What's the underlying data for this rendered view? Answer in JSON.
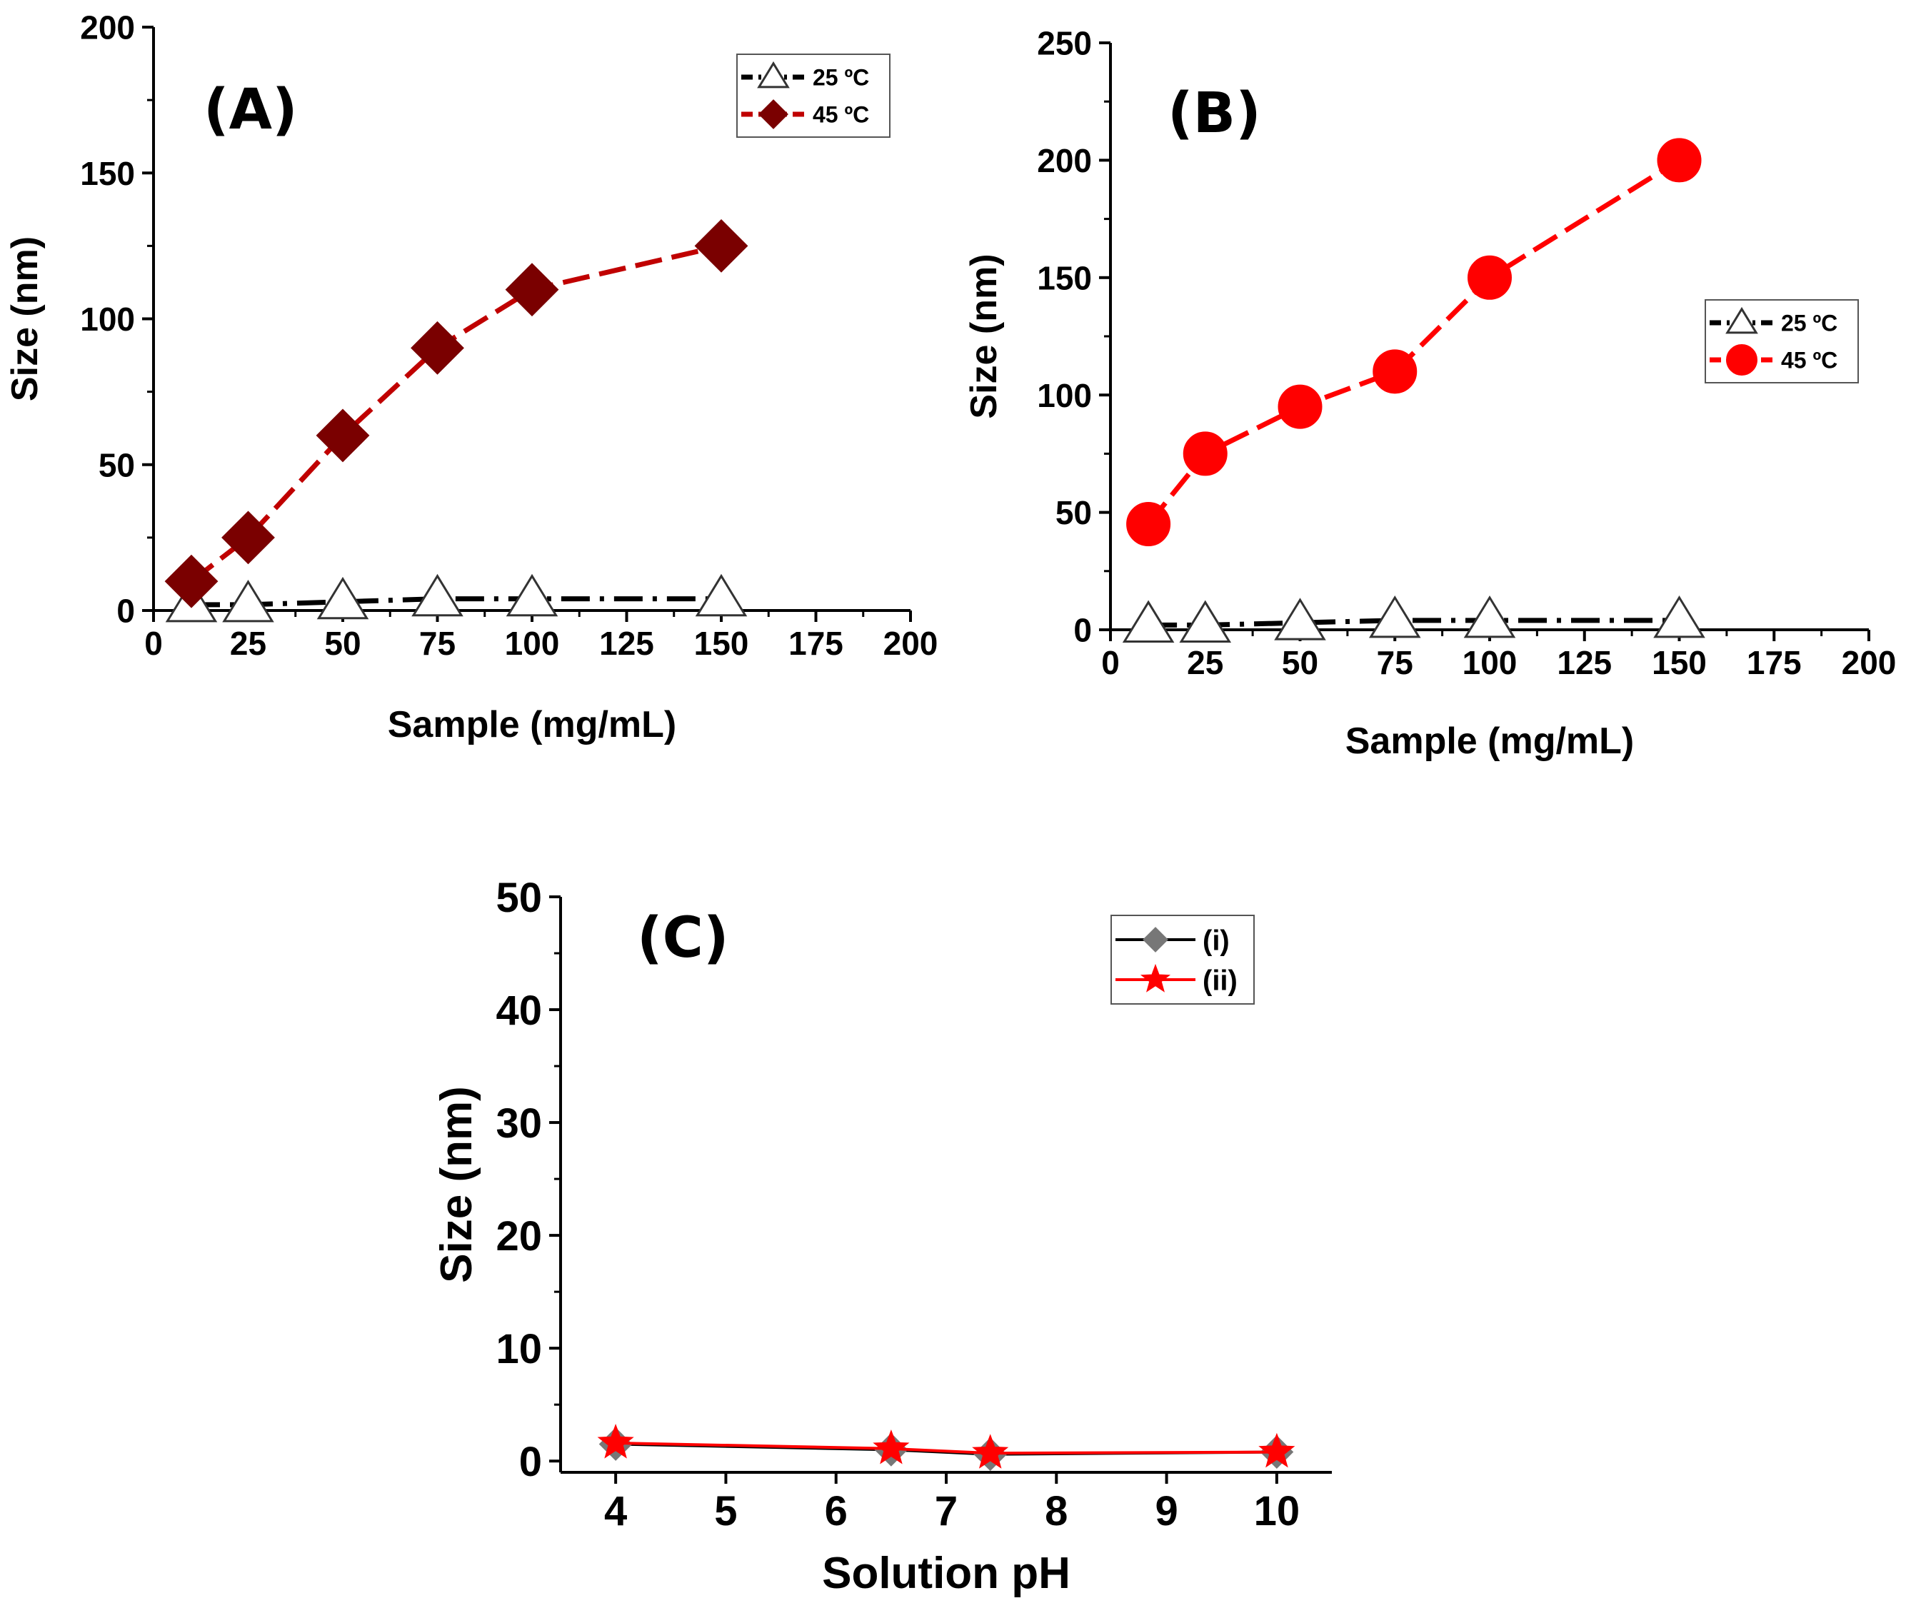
{
  "chart_data": [
    {
      "type": "line",
      "panel_label": "(A)",
      "xlabel": "Sample (mg/mL)",
      "ylabel": "Size (nm)",
      "xlim": [
        0,
        200
      ],
      "ylim": [
        0,
        200
      ],
      "xticks": [
        0,
        25,
        50,
        75,
        100,
        125,
        150,
        175,
        200
      ],
      "yticks": [
        0,
        50,
        100,
        150,
        200
      ],
      "legend_position": "top-right",
      "series": [
        {
          "name": "25 ºC",
          "color": "#000000",
          "marker": "triangle-open",
          "dash": "dash-dot",
          "x": [
            10,
            25,
            50,
            75,
            100,
            150
          ],
          "y": [
            2,
            2,
            3,
            4,
            4,
            4
          ]
        },
        {
          "name": "45 ºC",
          "color": "#7a0000",
          "line_color": "#c00000",
          "marker": "diamond",
          "dash": "dash",
          "x": [
            10,
            25,
            50,
            75,
            100,
            150
          ],
          "y": [
            10,
            25,
            60,
            90,
            110,
            125
          ]
        }
      ]
    },
    {
      "type": "line",
      "panel_label": "(B)",
      "xlabel": "Sample (mg/mL)",
      "ylabel": "Size (nm)",
      "xlim": [
        0,
        200
      ],
      "ylim": [
        0,
        250
      ],
      "xticks": [
        0,
        25,
        50,
        75,
        100,
        125,
        150,
        175,
        200
      ],
      "yticks": [
        0,
        50,
        100,
        150,
        200,
        250
      ],
      "legend_position": "right",
      "series": [
        {
          "name": "25 ºC",
          "color": "#000000",
          "marker": "triangle-open",
          "dash": "dash-dot",
          "x": [
            10,
            25,
            50,
            75,
            100,
            150
          ],
          "y": [
            2,
            2,
            3,
            4,
            4,
            4
          ]
        },
        {
          "name": "45 ºC",
          "color": "#ff0000",
          "line_color": "#ff0000",
          "marker": "circle",
          "dash": "dash",
          "x": [
            10,
            25,
            50,
            75,
            100,
            150
          ],
          "y": [
            45,
            75,
            95,
            110,
            150,
            200
          ]
        }
      ]
    },
    {
      "type": "line",
      "panel_label": "(C)",
      "xlabel": "Solution pH",
      "ylabel": "Size (nm)",
      "xlim": [
        3.5,
        10.5
      ],
      "ylim": [
        -1,
        50
      ],
      "xticks": [
        4,
        5,
        6,
        7,
        8,
        9,
        10
      ],
      "yticks": [
        0,
        10,
        20,
        30,
        40,
        50
      ],
      "legend_position": "top-right",
      "series": [
        {
          "name": "(i)",
          "color": "#777777",
          "line_color": "#000000",
          "marker": "diamond",
          "dash": "solid",
          "x": [
            4,
            6.5,
            7.4,
            10
          ],
          "y": [
            1.5,
            1.0,
            0.6,
            0.8
          ]
        },
        {
          "name": "(ii)",
          "color": "#ff0000",
          "line_color": "#ff0000",
          "marker": "star",
          "dash": "solid",
          "x": [
            4,
            6.5,
            7.4,
            10
          ],
          "y": [
            1.6,
            1.1,
            0.7,
            0.8
          ]
        }
      ]
    }
  ]
}
